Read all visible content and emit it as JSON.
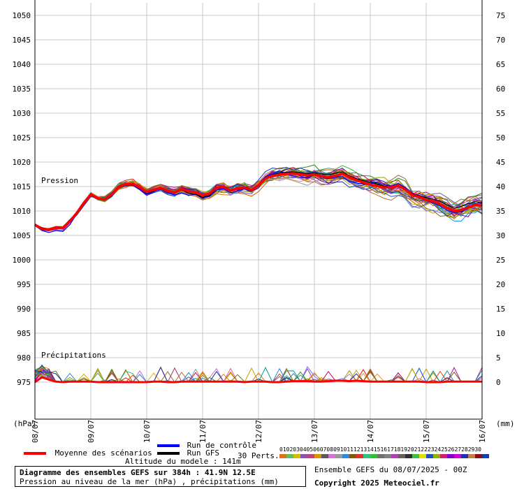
{
  "chart_data": {
    "type": "line",
    "title": "Diagramme des ensembles GEFS sur 384h : 41.9N 12.5E",
    "subtitle": "Pression au niveau de la mer (hPa) , précipitations (mm)",
    "left_axis": {
      "unit_label": "(hPa)",
      "ticks": [
        1050,
        1045,
        1040,
        1035,
        1030,
        1025,
        1020,
        1015,
        1010,
        1005,
        1000,
        995,
        990,
        985,
        980,
        975
      ],
      "ylim": [
        975,
        1050
      ]
    },
    "right_axis": {
      "unit_label": "(mm)",
      "ticks": [
        75,
        70,
        65,
        60,
        55,
        50,
        45,
        40,
        35,
        30,
        25,
        20,
        15,
        10,
        5,
        0
      ],
      "ylim": [
        0,
        75
      ]
    },
    "x_ticks": [
      "08/07",
      "09/07",
      "10/07",
      "11/07",
      "12/07",
      "13/07",
      "14/07",
      "15/07",
      "16/07"
    ],
    "pressure_label": "Pression",
    "precip_label": "Précipitations",
    "mean_pressure": {
      "name": "Moyenne des scénarios",
      "x": [
        0,
        6,
        12,
        18,
        24,
        30,
        36,
        42,
        48,
        54,
        60,
        66,
        72,
        78,
        84,
        90,
        96,
        102,
        108,
        114,
        120,
        126,
        132,
        138,
        144,
        150,
        156,
        162,
        168,
        174,
        180,
        186,
        192,
        198,
        204,
        210,
        216,
        222,
        228,
        234,
        240,
        246,
        252,
        258,
        264,
        270,
        276,
        282,
        288,
        294,
        300,
        306,
        312,
        318,
        324,
        330,
        336,
        342,
        348,
        354,
        360,
        366,
        372,
        378,
        384
      ],
      "values": [
        1007.2,
        1006.3,
        1006.2,
        1006.6,
        1006.5,
        1007.9,
        1009.6,
        1011.6,
        1013.4,
        1012.6,
        1012.4,
        1013.4,
        1015.0,
        1015.5,
        1015.6,
        1014.8,
        1013.9,
        1014.3,
        1014.7,
        1014.1,
        1013.8,
        1014.5,
        1014.0,
        1013.8,
        1013.2,
        1013.6,
        1014.8,
        1014.9,
        1014.2,
        1014.6,
        1014.8,
        1014.3,
        1015.3,
        1016.6,
        1017.2,
        1017.4,
        1017.6,
        1017.7,
        1017.5,
        1017.3,
        1017.4,
        1017.1,
        1016.9,
        1017.2,
        1017.6,
        1016.9,
        1016.3,
        1015.8,
        1015.4,
        1015.1,
        1014.8,
        1014.8,
        1015.2,
        1014.4,
        1013.2,
        1012.9,
        1012.3,
        1012.0,
        1011.4,
        1010.6,
        1010.0,
        1010.2,
        1010.7,
        1011.2,
        1011.1
      ]
    },
    "control_run": {
      "name": "Run de contrôle",
      "values": [
        1007.0,
        1006.0,
        1005.6,
        1006.0,
        1005.8,
        1007.2,
        1009.4,
        1011.7,
        1013.6,
        1012.6,
        1012.3,
        1013.1,
        1014.8,
        1015.4,
        1015.3,
        1014.4,
        1013.4,
        1013.9,
        1014.5,
        1013.8,
        1013.3,
        1013.7,
        1013.2,
        1013.4,
        1012.6,
        1013.0,
        1014.3,
        1014.6,
        1013.7,
        1014.1,
        1014.5,
        1014.0,
        1015.5,
        1017.0,
        1017.6,
        1018.2,
        1017.6,
        1017.1,
        1016.8,
        1016.9,
        1017.3,
        1016.9,
        1016.6,
        1016.9,
        1017.0,
        1016.1,
        1015.7,
        1015.5,
        1015.6,
        1015.8,
        1015.4,
        1015.1,
        1015.6,
        1014.8,
        1013.2,
        1012.7,
        1012.1,
        1011.7,
        1011.0,
        1010.1,
        1009.7,
        1009.8,
        1010.5,
        1011.4,
        1011.8
      ]
    },
    "gfs_run": {
      "name": "Run GFS",
      "values": [
        1007.3,
        1006.6,
        1006.3,
        1006.8,
        1006.7,
        1008.2,
        1009.8,
        1011.5,
        1013.2,
        1012.6,
        1012.4,
        1013.4,
        1014.9,
        1015.3,
        1015.4,
        1014.6,
        1013.7,
        1014.0,
        1014.6,
        1014.1,
        1013.6,
        1014.3,
        1013.6,
        1013.4,
        1012.8,
        1013.2,
        1014.6,
        1014.8,
        1014.1,
        1014.4,
        1014.7,
        1014.2,
        1015.4,
        1016.7,
        1017.4,
        1017.8,
        1017.9,
        1018.0,
        1017.8,
        1017.6,
        1017.8,
        1017.6,
        1017.4,
        1017.7,
        1018.0,
        1017.2,
        1016.6,
        1016.2,
        1015.9,
        1015.5,
        1015.1,
        1014.9,
        1015.3,
        1014.5,
        1013.5,
        1013.2,
        1012.7,
        1012.4,
        1012.0,
        1011.2,
        1010.6,
        1010.9,
        1011.5,
        1011.9,
        1011.6
      ]
    },
    "mean_precip": {
      "name": "Moyenne des scénarios",
      "values": [
        0.0,
        1.0,
        0.5,
        0.1,
        0.0,
        0.1,
        0.1,
        0.1,
        0.1,
        0.0,
        0.0,
        0.0,
        0.0,
        0.0,
        0.0,
        0.0,
        0.0,
        0.1,
        0.1,
        0.0,
        0.0,
        0.1,
        0.1,
        0.1,
        0.1,
        0.1,
        0.1,
        0.1,
        0.1,
        0.1,
        0.0,
        0.1,
        0.1,
        0.1,
        0.0,
        0.0,
        0.1,
        0.2,
        0.2,
        0.2,
        0.1,
        0.1,
        0.2,
        0.3,
        0.3,
        0.2,
        0.3,
        0.2,
        0.1,
        0.1,
        0.1,
        0.1,
        0.1,
        0.1,
        0.1,
        0.1,
        0.0,
        0.0,
        0.0,
        0.1,
        0.1,
        0.1,
        0.1,
        0.1,
        0.1
      ]
    },
    "member_count": 30,
    "member_colors": [
      "#cc5500",
      "#44aa44",
      "#c8a000",
      "#8844aa",
      "#aa3366",
      "#dd7700",
      "#cc66cc",
      "#999999",
      "#2288dd",
      "#886600",
      "#cc2222",
      "#33bb77",
      "#7777ff",
      "#bb8800",
      "#556677",
      "#009999",
      "#ee4400",
      "#996633",
      "#aa00aa",
      "#338833",
      "#dd9944",
      "#0055cc",
      "#88aa00",
      "#cc0066",
      "#6600cc",
      "#ddaa00",
      "#3366aa",
      "#bb6644",
      "#777700",
      "#1133aa"
    ]
  },
  "legend": {
    "mean_label": "Moyenne des scénarios",
    "control_label": "Run de contrôle",
    "gfs_label": "Run GFS",
    "altitude": "Altitude du modele : 141m",
    "perts_label": "30 Perts.",
    "pert_numbers": [
      "01",
      "02",
      "03",
      "04",
      "05",
      "06",
      "07",
      "08",
      "09",
      "10",
      "11",
      "12",
      "13",
      "14",
      "15",
      "16",
      "17",
      "18",
      "19",
      "20",
      "21",
      "22",
      "23",
      "24",
      "25",
      "26",
      "27",
      "28",
      "29",
      "30"
    ],
    "pert_colors": [
      "#e07020",
      "#60c060",
      "#d0c000",
      "#9050b0",
      "#c04080",
      "#e09000",
      "#5a5a5a",
      "#d870d8",
      "#9a9a9a",
      "#2a8adf",
      "#805a00",
      "#e03030",
      "#30c080",
      "#30c030",
      "#707070",
      "#808080",
      "#b040b0",
      "#606060",
      "#303030",
      "#40c040",
      "#e0e000",
      "#2050c0",
      "#90b000",
      "#d02070",
      "#8000d0",
      "#d000d0",
      "#2030b0",
      "#c08040",
      "#8a1010",
      "#1040b0"
    ],
    "colors": {
      "mean": "#ff0000",
      "control": "#0000ff",
      "gfs": "#000000"
    }
  },
  "footer": {
    "title": "Diagramme des ensembles GEFS sur 384h : 41.9N 12.5E",
    "subtitle": "Pression au niveau de la mer (hPa) , précipitations (mm)",
    "ensemble_run": "Ensemble GEFS du 08/07/2025 - 00Z",
    "copyright": "Copyright 2025 Meteociel.fr"
  }
}
